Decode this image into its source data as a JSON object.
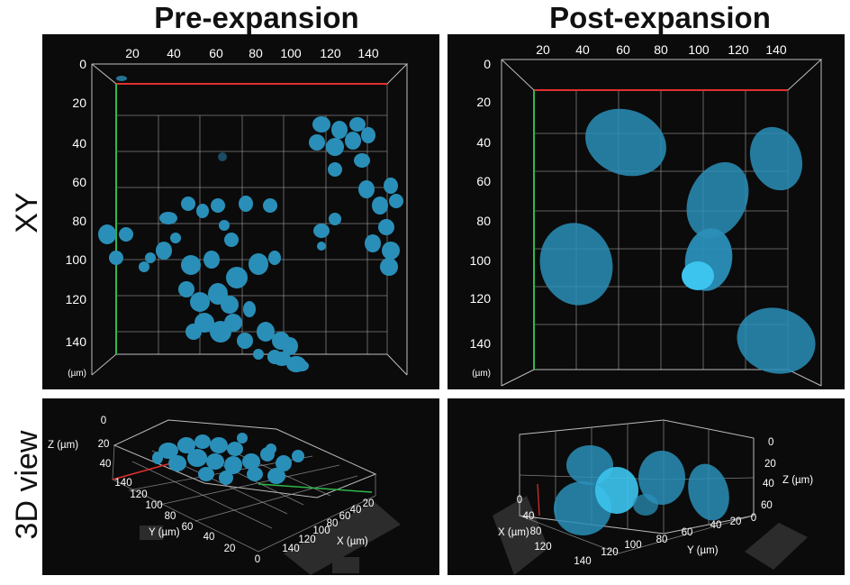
{
  "titles": {
    "pre": "Pre-expansion",
    "post": "Post-expansion"
  },
  "row_labels": {
    "xy": "XY",
    "view3d": "3D view"
  },
  "xy_panels": {
    "x_ticks": [
      "20",
      "40",
      "60",
      "80",
      "100",
      "120",
      "140"
    ],
    "y_ticks": [
      "0",
      "20",
      "40",
      "60",
      "80",
      "100",
      "120",
      "140"
    ],
    "unit": "(µm)"
  },
  "pre_3d": {
    "z_label": "Z (µm)",
    "z_ticks": [
      "0",
      "20",
      "40"
    ],
    "y_label": "Y (µm)",
    "y_ticks": [
      "140",
      "120",
      "100",
      "80",
      "60",
      "40",
      "20",
      "0"
    ],
    "x_label": "X (µm)",
    "x_ticks": [
      "140",
      "120",
      "100",
      "80",
      "60",
      "40",
      "20"
    ]
  },
  "post_3d": {
    "z_label": "Z (µm)",
    "z_ticks": [
      "0",
      "20",
      "40",
      "60"
    ],
    "x_label": "X (µm)",
    "x_ticks": [
      "0",
      "40",
      "80",
      "120"
    ],
    "y_label": "Y (µm)",
    "y_ticks": [
      "140",
      "120",
      "100",
      "80",
      "60",
      "40",
      "20",
      "0"
    ]
  },
  "colors": {
    "nuclei": "#2a8fb8",
    "background": "#0b0b0b",
    "axis_x": "#e03030",
    "axis_y": "#2fb84a"
  }
}
